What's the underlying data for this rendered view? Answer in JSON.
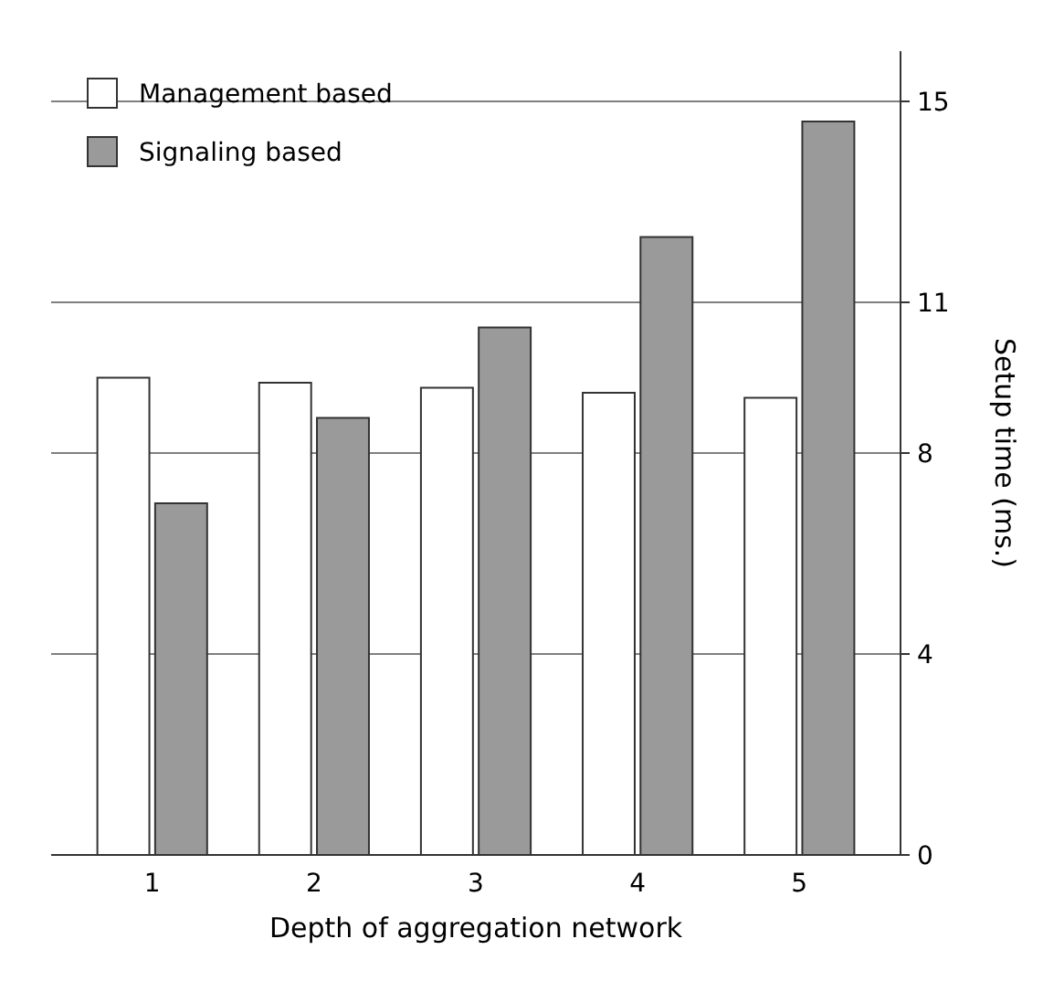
{
  "chart_data": {
    "type": "bar",
    "xlabel": "Depth of aggregation network",
    "ylabel": "Setup time (ms.)",
    "categories": [
      "1",
      "2",
      "3",
      "4",
      "5"
    ],
    "series": [
      {
        "name": "Management based",
        "color": "#ffffff",
        "values": [
          9.5,
          9.4,
          9.3,
          9.2,
          9.1
        ]
      },
      {
        "name": "Signaling based",
        "color": "#9a9a9a",
        "values": [
          7,
          8.7,
          10.5,
          12.3,
          14.6
        ]
      }
    ],
    "ylim": [
      0,
      16
    ],
    "yticks": [
      0,
      4,
      8,
      11,
      15
    ],
    "grid": "y",
    "legend": "top left"
  }
}
